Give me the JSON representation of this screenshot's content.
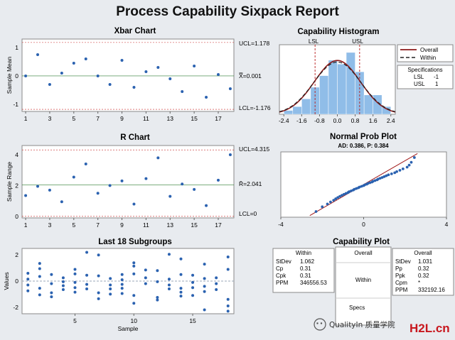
{
  "title": "Process Capability Sixpack Report",
  "xbar": {
    "title": "Xbar Chart",
    "ylabel": "Sample Mean",
    "ucl_label": "UCL=1.178",
    "center_label": "X̿=0.001",
    "lcl_label": "LCL=-1.176",
    "yticks": [
      "1",
      "0",
      "-1"
    ],
    "xticks": [
      "1",
      "3",
      "5",
      "7",
      "9",
      "11",
      "13",
      "15",
      "17"
    ]
  },
  "rchart": {
    "title": "R Chart",
    "ylabel": "Sample Range",
    "ucl_label": "UCL=4.315",
    "center_label": "R̄=2.041",
    "lcl_label": "LCL=0",
    "yticks": [
      "4",
      "2",
      "0"
    ],
    "xticks": [
      "1",
      "3",
      "5",
      "7",
      "9",
      "11",
      "13",
      "15",
      "17"
    ]
  },
  "last": {
    "title": "Last 18 Subgroups",
    "ylabel": "Values",
    "xlabel": "Sample",
    "yticks": [
      "2",
      "0",
      "-2"
    ],
    "xticks": [
      "5",
      "10",
      "15"
    ]
  },
  "hist": {
    "title": "Capability Histogram",
    "lsl": "LSL",
    "usl": "USL",
    "xticks": [
      "-2.4",
      "-1.6",
      "-0.8",
      "0.0",
      "0.8",
      "1.6",
      "2.4"
    ],
    "legend_overall": "Overall",
    "legend_within": "Within",
    "spec_title": "Specifications",
    "spec_lsl_name": "LSL",
    "spec_lsl_val": "-1",
    "spec_usl_name": "USL",
    "spec_usl_val": "1"
  },
  "normal": {
    "title": "Normal Prob Plot",
    "subtitle": "AD: 0.386, P: 0.384",
    "xticks": [
      "-4",
      "0",
      "4"
    ]
  },
  "cap": {
    "title": "Capability Plot",
    "within_title": "Within",
    "within_rows": [
      [
        "StDev",
        "1.062"
      ],
      [
        "Cp",
        "0.31"
      ],
      [
        "Cpk",
        "0.31"
      ],
      [
        "PPM",
        "346556.53"
      ]
    ],
    "overall_title": "Overall",
    "overall_rows": [
      [
        "StDev",
        "1.031"
      ],
      [
        "Pp",
        "0.32"
      ],
      [
        "Ppk",
        "0.32"
      ],
      [
        "Cpm",
        "*"
      ],
      [
        "PPM",
        "332192.16"
      ]
    ],
    "mid_overall": "Overall",
    "mid_within": "Within",
    "mid_specs": "Specs"
  },
  "watermark": {
    "text": "QualityIn 质量学院",
    "logo": "H2L.cn"
  },
  "chart_data": [
    {
      "type": "scatter",
      "title": "Xbar Chart",
      "ylabel": "Sample Mean",
      "x": [
        1,
        2,
        3,
        4,
        5,
        6,
        7,
        8,
        9,
        10,
        11,
        12,
        13,
        14,
        15,
        16,
        17,
        18
      ],
      "y": [
        0.0,
        0.75,
        -0.3,
        0.1,
        0.45,
        0.6,
        0.0,
        -0.3,
        0.55,
        -0.4,
        0.15,
        0.3,
        -0.1,
        -0.55,
        0.35,
        -0.75,
        0.05,
        -0.45
      ],
      "ucl": 1.178,
      "center": 0.001,
      "lcl": -1.176,
      "ylim": [
        -1.25,
        1.3
      ],
      "xlim": [
        0.7,
        18.3
      ]
    },
    {
      "type": "line",
      "title": "R Chart",
      "ylabel": "Sample Range",
      "x": [
        1,
        2,
        3,
        4,
        5,
        6,
        7,
        8,
        9,
        10,
        11,
        12,
        13,
        14,
        15,
        16,
        17,
        18
      ],
      "y": [
        1.35,
        1.95,
        1.7,
        0.95,
        2.55,
        3.4,
        1.5,
        2.0,
        2.3,
        0.8,
        2.45,
        3.8,
        1.3,
        2.1,
        1.75,
        0.7,
        2.35,
        4.0
      ],
      "ucl": 4.315,
      "center": 2.041,
      "lcl": 0,
      "ylim": [
        -0.1,
        4.6
      ],
      "xlim": [
        0.7,
        18.3
      ]
    },
    {
      "type": "scatter",
      "title": "Last 18 Subgroups",
      "xlabel": "Sample",
      "ylabel": "Values",
      "groups": [
        [
          0.6,
          0.15,
          -0.3,
          -0.75
        ],
        [
          1.35,
          0.95,
          0.35,
          -0.55,
          -1.05
        ],
        [
          0.5,
          -0.2,
          -0.9,
          -1.2
        ],
        [
          0.25,
          -0.05,
          -0.35,
          -0.65
        ],
        [
          0.9,
          0.55,
          -0.1,
          -0.5,
          -0.85
        ],
        [
          2.2,
          0.45,
          -0.25,
          -0.6
        ],
        [
          2.0,
          0.4,
          -0.9,
          -1.35
        ],
        [
          0.2,
          -0.3,
          -0.6,
          -1.0
        ],
        [
          0.5,
          0.1,
          -0.25,
          -0.55,
          -0.95
        ],
        [
          1.4,
          1.15,
          0.55,
          -1.1,
          -1.7
        ],
        [
          0.85,
          0.25,
          -0.2
        ],
        [
          0.8,
          -0.05,
          -1.25,
          -1.45
        ],
        [
          2.05,
          0.15,
          -0.3,
          -0.6
        ],
        [
          1.7,
          0.5,
          -0.55,
          -0.85,
          -1.15
        ],
        [
          0.45,
          -0.1,
          -0.5,
          -1.1
        ],
        [
          1.3,
          0.2,
          -0.4,
          -0.8,
          -2.2
        ],
        [
          0.25,
          -0.2,
          -0.65
        ],
        [
          1.85,
          0.9,
          -1.4,
          -1.9,
          -2.3
        ]
      ],
      "ylim": [
        -2.5,
        2.5
      ],
      "xlim": [
        0.5,
        18.5
      ]
    },
    {
      "type": "bar",
      "title": "Capability Histogram",
      "bin_edges": [
        -2.4,
        -2.0,
        -1.6,
        -1.2,
        -0.8,
        -0.4,
        0.0,
        0.4,
        0.8,
        1.2,
        1.6,
        2.0,
        2.4
      ],
      "values": [
        1,
        2,
        4,
        7,
        10,
        14,
        13,
        16,
        11,
        5,
        5,
        2
      ],
      "lsl": -1,
      "usl": 1,
      "curves": [
        {
          "name": "Overall",
          "mean": 0.001,
          "sd": 1.031
        },
        {
          "name": "Within",
          "mean": 0.001,
          "sd": 1.062
        }
      ],
      "xlim": [
        -2.6,
        2.6
      ],
      "ylim": [
        0,
        18
      ]
    },
    {
      "type": "scatter",
      "title": "Normal Prob Plot",
      "subtitle": "AD: 0.386, P: 0.384",
      "xlim": [
        -4,
        4
      ],
      "x": [
        -2.3,
        -2.0,
        -1.75,
        -1.6,
        -1.45,
        -1.35,
        -1.25,
        -1.15,
        -1.05,
        -0.95,
        -0.85,
        -0.75,
        -0.7,
        -0.6,
        -0.5,
        -0.45,
        -0.35,
        -0.25,
        -0.2,
        -0.1,
        0.0,
        0.05,
        0.15,
        0.2,
        0.3,
        0.4,
        0.45,
        0.55,
        0.65,
        0.7,
        0.8,
        0.9,
        1.0,
        1.1,
        1.2,
        1.35,
        1.5,
        1.6,
        1.75,
        1.9,
        2.1,
        2.2,
        2.3,
        2.45
      ]
    }
  ]
}
